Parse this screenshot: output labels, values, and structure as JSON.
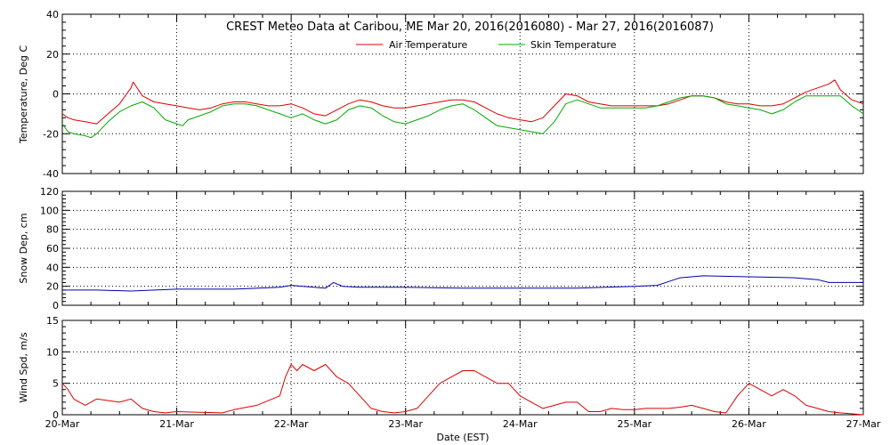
{
  "chart_data": [
    {
      "type": "line",
      "title": "CREST Meteo Data at Caribou, ME   Mar 20, 2016(2016080) - Mar 27, 2016(2016087)",
      "ylabel": "Temperature, Deg C",
      "ylim": [
        -40,
        40
      ],
      "yticks": [
        -40,
        -20,
        0,
        20,
        40
      ],
      "xlim": [
        "20-Mar",
        "27-Mar"
      ],
      "grid": true,
      "legend": "top-center",
      "series": [
        {
          "name": "Air Temperature",
          "color": "#dd0000",
          "x": [
            0,
            0.05,
            0.1,
            0.2,
            0.3,
            0.4,
            0.5,
            0.6,
            0.62,
            0.7,
            0.8,
            0.9,
            1.0,
            1.1,
            1.2,
            1.3,
            1.4,
            1.5,
            1.6,
            1.7,
            1.8,
            1.9,
            2.0,
            2.1,
            2.2,
            2.3,
            2.4,
            2.5,
            2.6,
            2.7,
            2.8,
            2.9,
            3.0,
            3.1,
            3.2,
            3.3,
            3.4,
            3.5,
            3.6,
            3.7,
            3.8,
            3.9,
            4.0,
            4.1,
            4.2,
            4.3,
            4.4,
            4.5,
            4.6,
            4.7,
            4.8,
            4.9,
            5.0,
            5.1,
            5.2,
            5.3,
            5.4,
            5.5,
            5.6,
            5.7,
            5.8,
            5.9,
            6.0,
            6.1,
            6.2,
            6.3,
            6.4,
            6.5,
            6.6,
            6.7,
            6.75,
            6.8,
            6.9,
            7.0
          ],
          "values": [
            -10,
            -12,
            -13,
            -14,
            -15,
            -10,
            -5,
            3,
            6,
            -1,
            -4,
            -5,
            -6,
            -7,
            -8,
            -7,
            -5,
            -4,
            -4,
            -5,
            -6,
            -6,
            -5,
            -7,
            -10,
            -11,
            -8,
            -5,
            -3,
            -4,
            -6,
            -7,
            -7,
            -6,
            -5,
            -4,
            -3,
            -3,
            -4,
            -7,
            -10,
            -12,
            -13,
            -14,
            -12,
            -6,
            0,
            -1,
            -4,
            -5,
            -6,
            -6,
            -6,
            -6,
            -6,
            -5,
            -3,
            -1,
            -1,
            -2,
            -4,
            -5,
            -5,
            -6,
            -6,
            -5,
            -2,
            1,
            3,
            5,
            7,
            2,
            -3,
            -5
          ]
        },
        {
          "name": "Skin Temperature",
          "color": "#00aa00",
          "x": [
            0,
            0.05,
            0.1,
            0.2,
            0.25,
            0.3,
            0.4,
            0.5,
            0.6,
            0.7,
            0.8,
            0.9,
            1.0,
            1.05,
            1.1,
            1.2,
            1.3,
            1.4,
            1.5,
            1.6,
            1.7,
            1.8,
            1.9,
            2.0,
            2.1,
            2.2,
            2.3,
            2.4,
            2.5,
            2.6,
            2.7,
            2.8,
            2.9,
            3.0,
            3.1,
            3.2,
            3.3,
            3.4,
            3.5,
            3.6,
            3.7,
            3.8,
            3.9,
            4.0,
            4.1,
            4.2,
            4.3,
            4.4,
            4.5,
            4.6,
            4.7,
            4.8,
            4.9,
            5.0,
            5.1,
            5.2,
            5.3,
            5.4,
            5.5,
            5.6,
            5.7,
            5.8,
            5.9,
            6.0,
            6.1,
            6.2,
            6.3,
            6.4,
            6.5,
            6.6,
            6.7,
            6.8,
            6.9,
            7.0
          ],
          "values": [
            -15,
            -19,
            -20,
            -21,
            -22,
            -20,
            -14,
            -9,
            -6,
            -4,
            -7,
            -13,
            -15,
            -16,
            -13,
            -11,
            -9,
            -6,
            -5,
            -5,
            -6,
            -8,
            -10,
            -12,
            -10,
            -13,
            -15,
            -13,
            -8,
            -6,
            -7,
            -11,
            -14,
            -15,
            -13,
            -11,
            -8,
            -6,
            -5,
            -8,
            -12,
            -16,
            -17,
            -18,
            -19,
            -20,
            -14,
            -5,
            -3,
            -5,
            -7,
            -7,
            -7,
            -7,
            -7,
            -6,
            -4,
            -2,
            -1,
            -1,
            -2,
            -5,
            -6,
            -7,
            -8,
            -10,
            -8,
            -4,
            -1,
            -1,
            -1,
            -1,
            -6,
            -10
          ]
        }
      ]
    },
    {
      "type": "line",
      "ylabel": "Snow Dep, cm",
      "ylim": [
        0,
        120
      ],
      "yticks": [
        0,
        20,
        40,
        60,
        80,
        100,
        120
      ],
      "xlim": [
        "20-Mar",
        "27-Mar"
      ],
      "grid": true,
      "series": [
        {
          "color": "#0000aa",
          "x": [
            0,
            0.3,
            0.6,
            1.0,
            1.5,
            1.9,
            2.0,
            2.2,
            2.3,
            2.37,
            2.45,
            2.6,
            3.0,
            3.5,
            4.0,
            4.5,
            5.0,
            5.2,
            5.3,
            5.4,
            5.5,
            5.6,
            6.0,
            6.4,
            6.6,
            6.7,
            7.0
          ],
          "values": [
            16,
            16,
            15,
            17,
            17,
            19,
            21,
            19,
            18,
            24,
            20,
            19,
            19,
            18,
            18,
            18,
            20,
            21,
            25,
            29,
            30,
            31,
            30,
            29,
            27,
            24,
            24
          ]
        }
      ]
    },
    {
      "type": "line",
      "ylabel": "Wind Spd, m/s",
      "xlabel": "Date (EST)",
      "ylim": [
        0,
        15
      ],
      "yticks": [
        0,
        5,
        10,
        15
      ],
      "xlim": [
        "20-Mar",
        "27-Mar"
      ],
      "xtick_labels": [
        "20-Mar",
        "21-Mar",
        "22-Mar",
        "23-Mar",
        "24-Mar",
        "25-Mar",
        "26-Mar",
        "27-Mar"
      ],
      "grid": true,
      "series": [
        {
          "color": "#dd0000",
          "x": [
            0,
            0.05,
            0.1,
            0.2,
            0.3,
            0.5,
            0.6,
            0.7,
            0.8,
            0.9,
            1.0,
            1.2,
            1.4,
            1.5,
            1.7,
            1.9,
            1.95,
            2.0,
            2.05,
            2.1,
            2.2,
            2.3,
            2.4,
            2.5,
            2.6,
            2.7,
            2.8,
            2.9,
            3.0,
            3.1,
            3.2,
            3.3,
            3.4,
            3.5,
            3.6,
            3.7,
            3.8,
            3.9,
            4.0,
            4.1,
            4.2,
            4.3,
            4.4,
            4.5,
            4.6,
            4.7,
            4.8,
            4.9,
            5.0,
            5.1,
            5.2,
            5.3,
            5.4,
            5.5,
            5.6,
            5.7,
            5.8,
            5.9,
            6.0,
            6.1,
            6.2,
            6.3,
            6.4,
            6.5,
            6.6,
            6.7,
            6.8,
            7.0
          ],
          "values": [
            5,
            4,
            2.5,
            1.5,
            2.5,
            2,
            2.5,
            1,
            0.5,
            0.3,
            0.5,
            0.4,
            0.3,
            0.8,
            1.5,
            3,
            6,
            8,
            7,
            8,
            7,
            8,
            6,
            5,
            3,
            1,
            0.5,
            0.3,
            0.5,
            1,
            3,
            5,
            6,
            7,
            7,
            6,
            5,
            5,
            3,
            2,
            1,
            1.5,
            2,
            2,
            0.5,
            0.5,
            1,
            0.8,
            0.8,
            1,
            1,
            1,
            1.2,
            1.5,
            1,
            0.5,
            0.3,
            3,
            5,
            4,
            3,
            4,
            3,
            1.5,
            1,
            0.5,
            0.3,
            0
          ]
        }
      ]
    }
  ]
}
